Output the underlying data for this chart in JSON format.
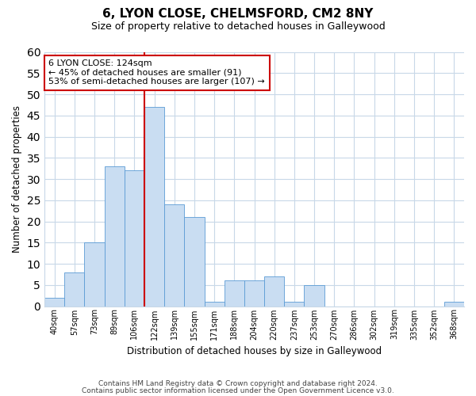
{
  "title": "6, LYON CLOSE, CHELMSFORD, CM2 8NY",
  "subtitle": "Size of property relative to detached houses in Galleywood",
  "xlabel": "Distribution of detached houses by size in Galleywood",
  "ylabel": "Number of detached properties",
  "bin_labels": [
    "40sqm",
    "57sqm",
    "73sqm",
    "89sqm",
    "106sqm",
    "122sqm",
    "139sqm",
    "155sqm",
    "171sqm",
    "188sqm",
    "204sqm",
    "220sqm",
    "237sqm",
    "253sqm",
    "270sqm",
    "286sqm",
    "302sqm",
    "319sqm",
    "335sqm",
    "352sqm",
    "368sqm"
  ],
  "bar_values": [
    2,
    8,
    15,
    33,
    32,
    47,
    24,
    21,
    1,
    6,
    6,
    7,
    1,
    5,
    0,
    0,
    0,
    0,
    0,
    0,
    1
  ],
  "bar_color": "#c9ddf2",
  "bar_edge_color": "#5b9bd5",
  "marker_line_idx": 5,
  "marker_line_color": "#cc0000",
  "annotation_title": "6 LYON CLOSE: 124sqm",
  "annotation_line1": "← 45% of detached houses are smaller (91)",
  "annotation_line2": "53% of semi-detached houses are larger (107) →",
  "annotation_box_edge_color": "#cc0000",
  "ylim": [
    0,
    60
  ],
  "yticks": [
    0,
    5,
    10,
    15,
    20,
    25,
    30,
    35,
    40,
    45,
    50,
    55,
    60
  ],
  "footer1": "Contains HM Land Registry data © Crown copyright and database right 2024.",
  "footer2": "Contains public sector information licensed under the Open Government Licence v3.0.",
  "bg_color": "#ffffff",
  "grid_color": "#c8d8e8"
}
